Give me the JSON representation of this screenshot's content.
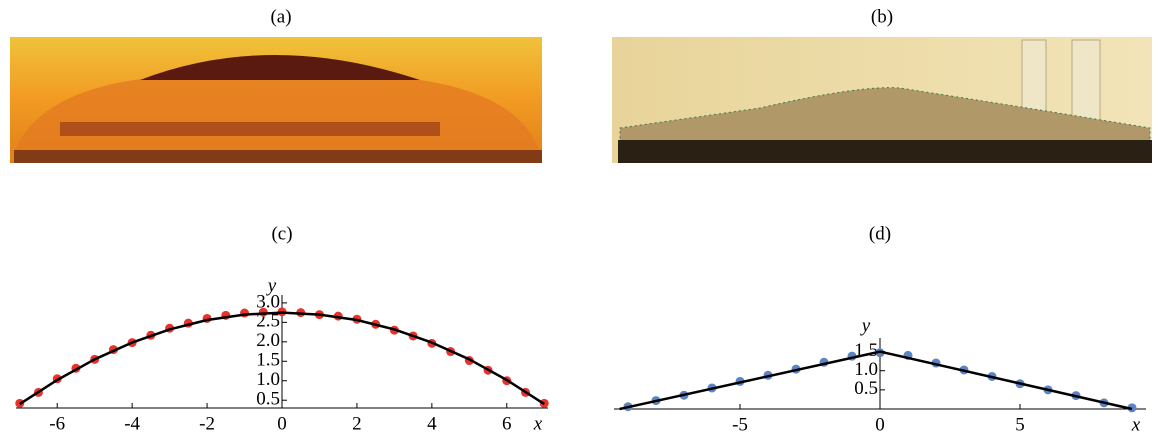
{
  "panels": [
    "(a)",
    "(b)"
  ],
  "chart_data": [
    {
      "type": "scatter",
      "title": "(c)",
      "x_label": "x",
      "y_label": "y",
      "xlim": [
        -7.1,
        7.1
      ],
      "ylim": [
        0.3,
        3.1
      ],
      "xticks": [
        -6,
        -4,
        -2,
        0,
        2,
        4,
        6
      ],
      "yticks": [
        0.5,
        {
          "value": 1,
          "label": "1.0"
        },
        1.5,
        {
          "value": 2,
          "label": "2.0"
        },
        2.5,
        {
          "value": 3,
          "label": "3.0"
        }
      ],
      "series": [
        {
          "color": "#e8332a",
          "style": "points",
          "x": [
            -7,
            -6.5,
            -6,
            -5.5,
            -5,
            -4.5,
            -4,
            -3.5,
            -3,
            -2.5,
            -2,
            -1.5,
            -1,
            -0.5,
            0,
            0.5,
            1,
            1.5,
            2,
            2.5,
            3,
            3.5,
            4,
            4.5,
            5,
            5.5,
            6,
            6.5,
            7
          ],
          "values": [
            0.42,
            0.7,
            1.05,
            1.32,
            1.55,
            1.8,
            1.98,
            2.17,
            2.35,
            2.48,
            2.6,
            2.68,
            2.74,
            2.76,
            2.77,
            2.75,
            2.7,
            2.66,
            2.58,
            2.45,
            2.3,
            2.15,
            1.96,
            1.75,
            1.52,
            1.27,
            1.0,
            0.7,
            0.42
          ]
        },
        {
          "color": "#000000",
          "style": "line",
          "x": [
            -7,
            -6,
            -5,
            -4,
            -3,
            -2,
            -1,
            0,
            1,
            2,
            3,
            4,
            5,
            6,
            7
          ],
          "values": [
            0.4,
            1.02,
            1.55,
            1.98,
            2.32,
            2.56,
            2.7,
            2.75,
            2.7,
            2.56,
            2.32,
            1.98,
            1.55,
            1.02,
            0.4
          ]
        }
      ]
    },
    {
      "type": "scatter",
      "title": "(d)",
      "x_label": "x",
      "y_label": "y",
      "xlim": [
        -9.5,
        9.5
      ],
      "ylim": [
        0,
        1.75
      ],
      "xticks": [
        -5,
        0,
        5
      ],
      "yticks": [
        0.5,
        {
          "value": 1,
          "label": "1.0"
        },
        1.5
      ],
      "series": [
        {
          "color": "#5b85c4",
          "style": "points",
          "x": [
            -9,
            -8,
            -7,
            -6,
            -5,
            -4,
            -3,
            -2,
            -1,
            0,
            1,
            2,
            3,
            4,
            5,
            6,
            7,
            8,
            9
          ],
          "values": [
            0.06,
            0.22,
            0.36,
            0.55,
            0.72,
            0.88,
            1.04,
            1.22,
            1.38,
            1.47,
            1.4,
            1.2,
            1.02,
            0.85,
            0.66,
            0.5,
            0.35,
            0.16,
            0.03
          ]
        },
        {
          "color": "#000000",
          "style": "line",
          "x": [
            -9.3,
            0,
            9
          ],
          "values": [
            0,
            1.5,
            0
          ]
        }
      ]
    }
  ]
}
